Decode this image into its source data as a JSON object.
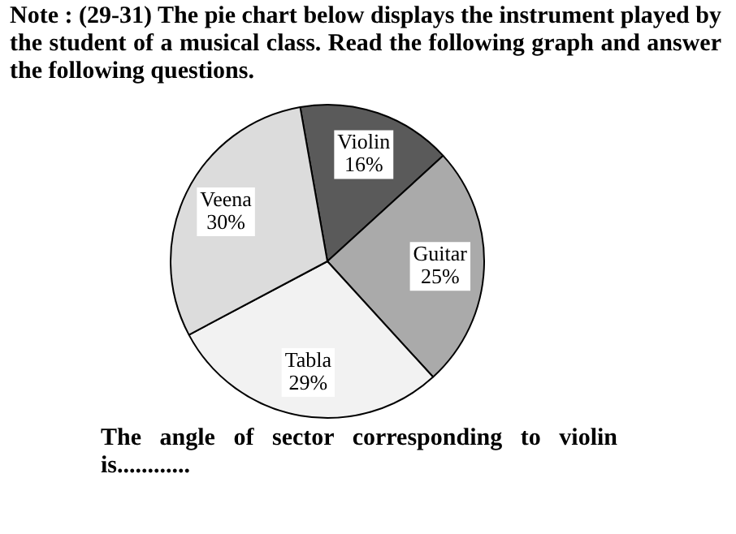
{
  "chart_data": {
    "type": "pie",
    "title": "Note : (29-31) The pie chart below displays the instrument played by the student of a musical class. Read the following graph and answer the following questions.",
    "categories": [
      "Violin",
      "Guitar",
      "Tabla",
      "Veena"
    ],
    "values": [
      16,
      25,
      29,
      30
    ],
    "value_labels": [
      "16%",
      "25%",
      "29%",
      "30%"
    ],
    "colors": [
      "#5a5a5a",
      "#aaaaaa",
      "#f2f2f2",
      "#dcdcdc"
    ],
    "annotations": [
      "The angle of sector corresponding to violin is............"
    ],
    "legend": false
  }
}
